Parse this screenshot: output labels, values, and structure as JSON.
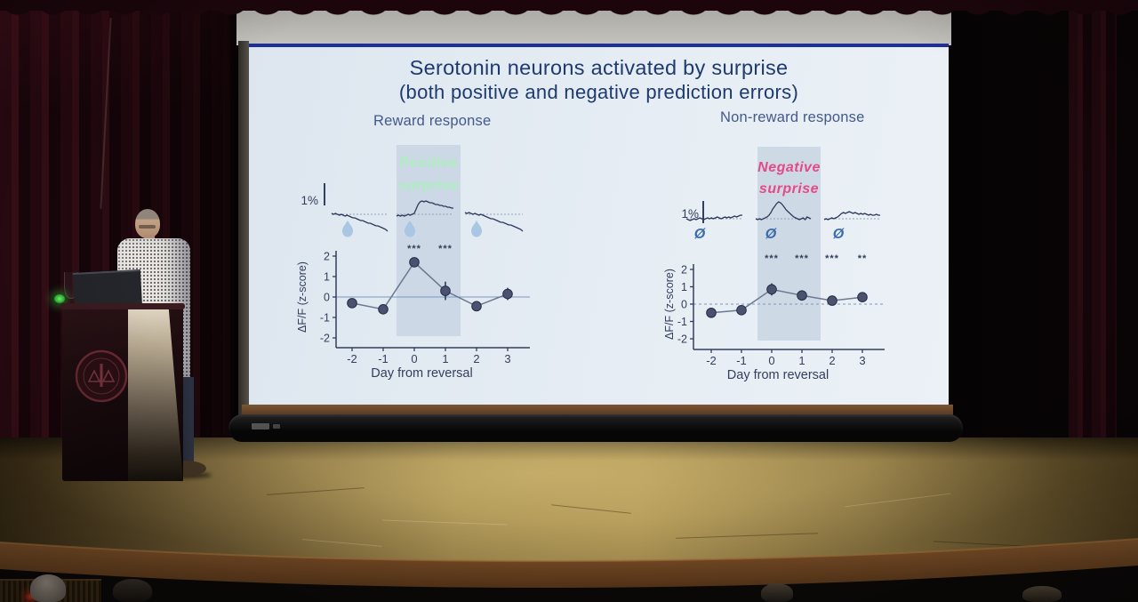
{
  "slide": {
    "title_line1": "Serotonin neurons activated by surprise",
    "title_line2": "(both positive and negative prediction errors)",
    "title_color": "#1e3a6e",
    "background": "#e4ebf3",
    "top_border_color": "#1d2f9b"
  },
  "chart_data": [
    {
      "type": "line",
      "title": "Reward response",
      "xlabel": "Day from reversal",
      "ylabel": "ΔF/F (z-score)",
      "x": [
        -2,
        -1,
        0,
        1,
        2,
        3
      ],
      "values": [
        -0.3,
        -0.6,
        1.7,
        0.3,
        -0.45,
        0.15
      ],
      "errors": [
        0.15,
        0.18,
        0.2,
        0.45,
        0.25,
        0.3
      ],
      "significance": [
        "",
        "",
        "***",
        "***",
        "",
        ""
      ],
      "ylim": [
        -2,
        2
      ],
      "yticks": [
        2,
        1,
        0,
        -1,
        -2
      ],
      "zero_line": "solid",
      "highlight_band_days": [
        -0.55,
        1.35
      ],
      "band_label": "Positive surprise",
      "band_label_color": "#abefbc",
      "cue_icon": "water-drop-icon",
      "cue_glyph": "",
      "scalebar_label": "1%",
      "traces": [
        [
          1,
          0,
          1,
          0,
          -1,
          0,
          -1,
          -2,
          -1,
          -2,
          -3,
          -4,
          -4,
          -5,
          -6,
          -7,
          -7,
          -8,
          -9,
          -10,
          -10,
          -11,
          -12,
          -13,
          -13,
          -14,
          -15,
          -16,
          -17,
          -19
        ],
        [
          -2,
          -1,
          -2,
          -1,
          -2,
          -1,
          0,
          -1,
          0,
          1,
          6,
          11,
          14,
          15,
          14,
          15,
          14,
          13,
          13,
          12,
          11,
          11,
          10,
          10,
          9,
          9,
          8,
          8,
          7,
          7
        ],
        [
          2,
          1,
          2,
          1,
          0,
          1,
          0,
          -1,
          0,
          -1,
          -2,
          -3,
          -4,
          -5,
          -5,
          -6,
          -7,
          -8,
          -9,
          -9,
          -10,
          -11,
          -12,
          -12,
          -13,
          -14,
          -15,
          -16,
          -17,
          -19
        ]
      ]
    },
    {
      "type": "line",
      "title": "Non-reward response",
      "xlabel": "Day from reversal",
      "ylabel": "ΔF/F (z-score)",
      "x": [
        -2,
        -1,
        0,
        1,
        2,
        3
      ],
      "values": [
        -0.5,
        -0.35,
        0.85,
        0.5,
        0.2,
        0.4
      ],
      "errors": [
        0.2,
        0.15,
        0.35,
        0.3,
        0.15,
        0.2
      ],
      "significance": [
        "",
        "",
        "***",
        "***",
        "***",
        "**"
      ],
      "ylim": [
        -2,
        2
      ],
      "yticks": [
        2,
        1,
        0,
        -1,
        -2
      ],
      "zero_line": "dashed",
      "highlight_band_days": [
        -0.45,
        1.6
      ],
      "band_label": "Negative surprise",
      "band_label_color": "#e64a86",
      "cue_icon": "no-reward-icon",
      "cue_glyph": "Ø",
      "scalebar_label": "1%",
      "traces": [
        [
          0,
          -1,
          -2,
          -1,
          0,
          -1,
          0,
          1,
          0,
          -1,
          0,
          1,
          0,
          1,
          0,
          1,
          2,
          1,
          0,
          1,
          2,
          1,
          2,
          1,
          2,
          3,
          2,
          3,
          4,
          4
        ],
        [
          0,
          -1,
          0,
          -1,
          0,
          1,
          2,
          4,
          7,
          11,
          14,
          17,
          19,
          18,
          16,
          13,
          10,
          8,
          6,
          4,
          2,
          1,
          0,
          -1,
          0,
          1,
          -1,
          2,
          1,
          0
        ],
        [
          -1,
          0,
          -1,
          0,
          1,
          0,
          1,
          2,
          4,
          6,
          7,
          6,
          7,
          8,
          7,
          6,
          7,
          6,
          5,
          6,
          5,
          6,
          5,
          4,
          5,
          4,
          4,
          5,
          4,
          4
        ]
      ]
    }
  ],
  "colors": {
    "axis": "#333f5c",
    "series_line": "#6b7890",
    "marker_fill": "#4a5270",
    "marker_edge": "#242d45",
    "error_bar": "#2e3a58",
    "band_fill": "#c7d3e2",
    "trace": "#2c3a5e",
    "baseline_dash": "#96a0b4",
    "cue_blue": "#3a6bae",
    "zero_line": "#7d96c2",
    "drop_fill": "#a9c6e4"
  }
}
